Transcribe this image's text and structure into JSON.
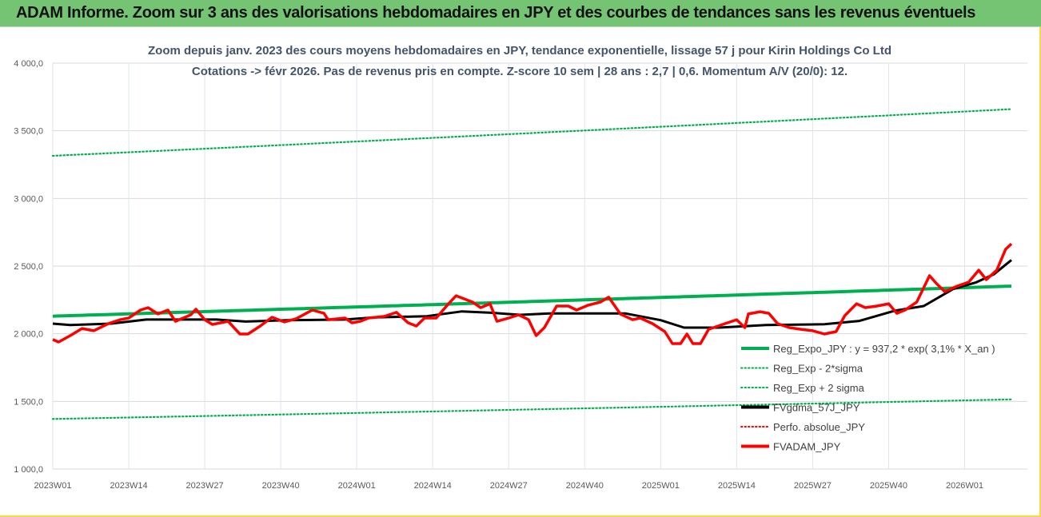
{
  "header": {
    "title": "ADAM Informe. Zoom sur 3 ans des valorisations hebdomadaires en JPY et des courbes de tendances sans les revenus éventuels"
  },
  "chart_data": {
    "type": "line",
    "title": "Zoom depuis janv. 2023 des cours moyens hebdomadaires en JPY, tendance exponentielle, lissage 57 j pour Kirin Holdings Co Ltd",
    "subtitle": "Cotations -> févr 2026. Pas de revenus pris en compte. Z-score 10 sem | 28 ans : 2,7 | 0,6. Momentum A/V (20/0): 12.",
    "ylim": [
      1000,
      4000
    ],
    "yticks": [
      "1 000,0",
      "1 500,0",
      "2 000,0",
      "2 500,0",
      "3 000,0",
      "3 500,0",
      "4 000,0"
    ],
    "xticks": [
      "2023W01",
      "2023W14",
      "2023W27",
      "2023W40",
      "2024W01",
      "2024W14",
      "2024W27",
      "2024W40",
      "2025W01",
      "2025W14",
      "2025W27",
      "2025W40",
      "2026W01"
    ],
    "x_unit": "week index from 2023W01",
    "xlim": [
      0,
      164
    ],
    "legend_position": "bottom-right",
    "series": [
      {
        "name": "Reg_Expo_JPY : y = 937,2 * exp( 3,1% *  X_an )",
        "color": "#00b050",
        "style": "solid",
        "points": [
          [
            0,
            2130
          ],
          [
            164,
            2352
          ]
        ]
      },
      {
        "name": "Reg_Exp - 2*sigma",
        "color": "#00b050",
        "style": "dotted",
        "points": [
          [
            0,
            1370
          ],
          [
            164,
            1515
          ]
        ]
      },
      {
        "name": "Reg_Exp + 2 sigma",
        "color": "#00b050",
        "style": "dotted",
        "points": [
          [
            0,
            3315
          ],
          [
            164,
            3660
          ]
        ]
      },
      {
        "name": "FVgdma_57J_JPY",
        "color": "#000000",
        "style": "solid",
        "points": [
          [
            0,
            2075
          ],
          [
            3,
            2065
          ],
          [
            10,
            2075
          ],
          [
            16,
            2105
          ],
          [
            28,
            2105
          ],
          [
            33,
            2090
          ],
          [
            40,
            2100
          ],
          [
            50,
            2105
          ],
          [
            55,
            2120
          ],
          [
            64,
            2130
          ],
          [
            70,
            2165
          ],
          [
            75,
            2155
          ],
          [
            80,
            2140
          ],
          [
            85,
            2150
          ],
          [
            98,
            2150
          ],
          [
            104,
            2100
          ],
          [
            108,
            2045
          ],
          [
            114,
            2045
          ],
          [
            122,
            2065
          ],
          [
            132,
            2070
          ],
          [
            138,
            2095
          ],
          [
            144,
            2170
          ],
          [
            149,
            2205
          ],
          [
            154,
            2330
          ],
          [
            158,
            2380
          ],
          [
            161,
            2440
          ],
          [
            164,
            2545
          ]
        ]
      },
      {
        "name": "Perfo. absolue_JPY",
        "color": "#ff0000",
        "style": "dotted",
        "points": []
      },
      {
        "name": "FVADAM_JPY",
        "color": "#ff0000",
        "style": "solid",
        "points": [
          [
            0,
            1957
          ],
          [
            1,
            1939
          ],
          [
            3,
            1986
          ],
          [
            5,
            2039
          ],
          [
            7,
            2022
          ],
          [
            9.5,
            2075
          ],
          [
            11.5,
            2104
          ],
          [
            13,
            2116
          ],
          [
            15,
            2175
          ],
          [
            16.3,
            2193
          ],
          [
            18,
            2146
          ],
          [
            19.7,
            2175
          ],
          [
            21,
            2092
          ],
          [
            23.6,
            2140
          ],
          [
            24.5,
            2181
          ],
          [
            26,
            2104
          ],
          [
            27.3,
            2069
          ],
          [
            30,
            2092
          ],
          [
            32,
            1998
          ],
          [
            33.4,
            1998
          ],
          [
            35.5,
            2057
          ],
          [
            37.5,
            2122
          ],
          [
            39.6,
            2087
          ],
          [
            41.6,
            2110
          ],
          [
            44.4,
            2175
          ],
          [
            46.4,
            2151
          ],
          [
            47.1,
            2104
          ],
          [
            50,
            2116
          ],
          [
            51.2,
            2081
          ],
          [
            52.6,
            2092
          ],
          [
            54,
            2116
          ],
          [
            56.7,
            2128
          ],
          [
            58.8,
            2158
          ],
          [
            60.8,
            2081
          ],
          [
            62.2,
            2057
          ],
          [
            63.6,
            2116
          ],
          [
            65.6,
            2116
          ],
          [
            67.7,
            2222
          ],
          [
            69,
            2281
          ],
          [
            71.8,
            2234
          ],
          [
            73.2,
            2193
          ],
          [
            74.8,
            2222
          ],
          [
            76,
            2092
          ],
          [
            78,
            2116
          ],
          [
            79.7,
            2140
          ],
          [
            81.4,
            2104
          ],
          [
            82.7,
            1986
          ],
          [
            84.1,
            2045
          ],
          [
            86.2,
            2205
          ],
          [
            88.2,
            2205
          ],
          [
            89.6,
            2175
          ],
          [
            91.6,
            2211
          ],
          [
            93.7,
            2234
          ],
          [
            95.1,
            2270
          ],
          [
            97.1,
            2146
          ],
          [
            99.2,
            2104
          ],
          [
            100.5,
            2116
          ],
          [
            102.6,
            2075
          ],
          [
            104.7,
            2016
          ],
          [
            106,
            1927
          ],
          [
            107.4,
            1927
          ],
          [
            108.5,
            1998
          ],
          [
            109.5,
            1927
          ],
          [
            110.8,
            1927
          ],
          [
            112.2,
            2033
          ],
          [
            115,
            2075
          ],
          [
            117,
            2104
          ],
          [
            118.4,
            2045
          ],
          [
            119,
            2146
          ],
          [
            121,
            2163
          ],
          [
            122.5,
            2151
          ],
          [
            124,
            2075
          ],
          [
            126,
            2045
          ],
          [
            128,
            2033
          ],
          [
            130,
            2022
          ],
          [
            132,
            1998
          ],
          [
            134,
            2016
          ],
          [
            135.5,
            2134
          ],
          [
            137.5,
            2222
          ],
          [
            139,
            2193
          ],
          [
            141,
            2205
          ],
          [
            143,
            2222
          ],
          [
            144.4,
            2151
          ],
          [
            145.8,
            2175
          ],
          [
            147.8,
            2234
          ],
          [
            150,
            2429
          ],
          [
            151.2,
            2370
          ],
          [
            152.6,
            2311
          ],
          [
            154.7,
            2352
          ],
          [
            156.7,
            2382
          ],
          [
            158.4,
            2470
          ],
          [
            159.7,
            2400
          ],
          [
            161.5,
            2470
          ],
          [
            163,
            2624
          ],
          [
            164,
            2665
          ]
        ]
      }
    ]
  }
}
